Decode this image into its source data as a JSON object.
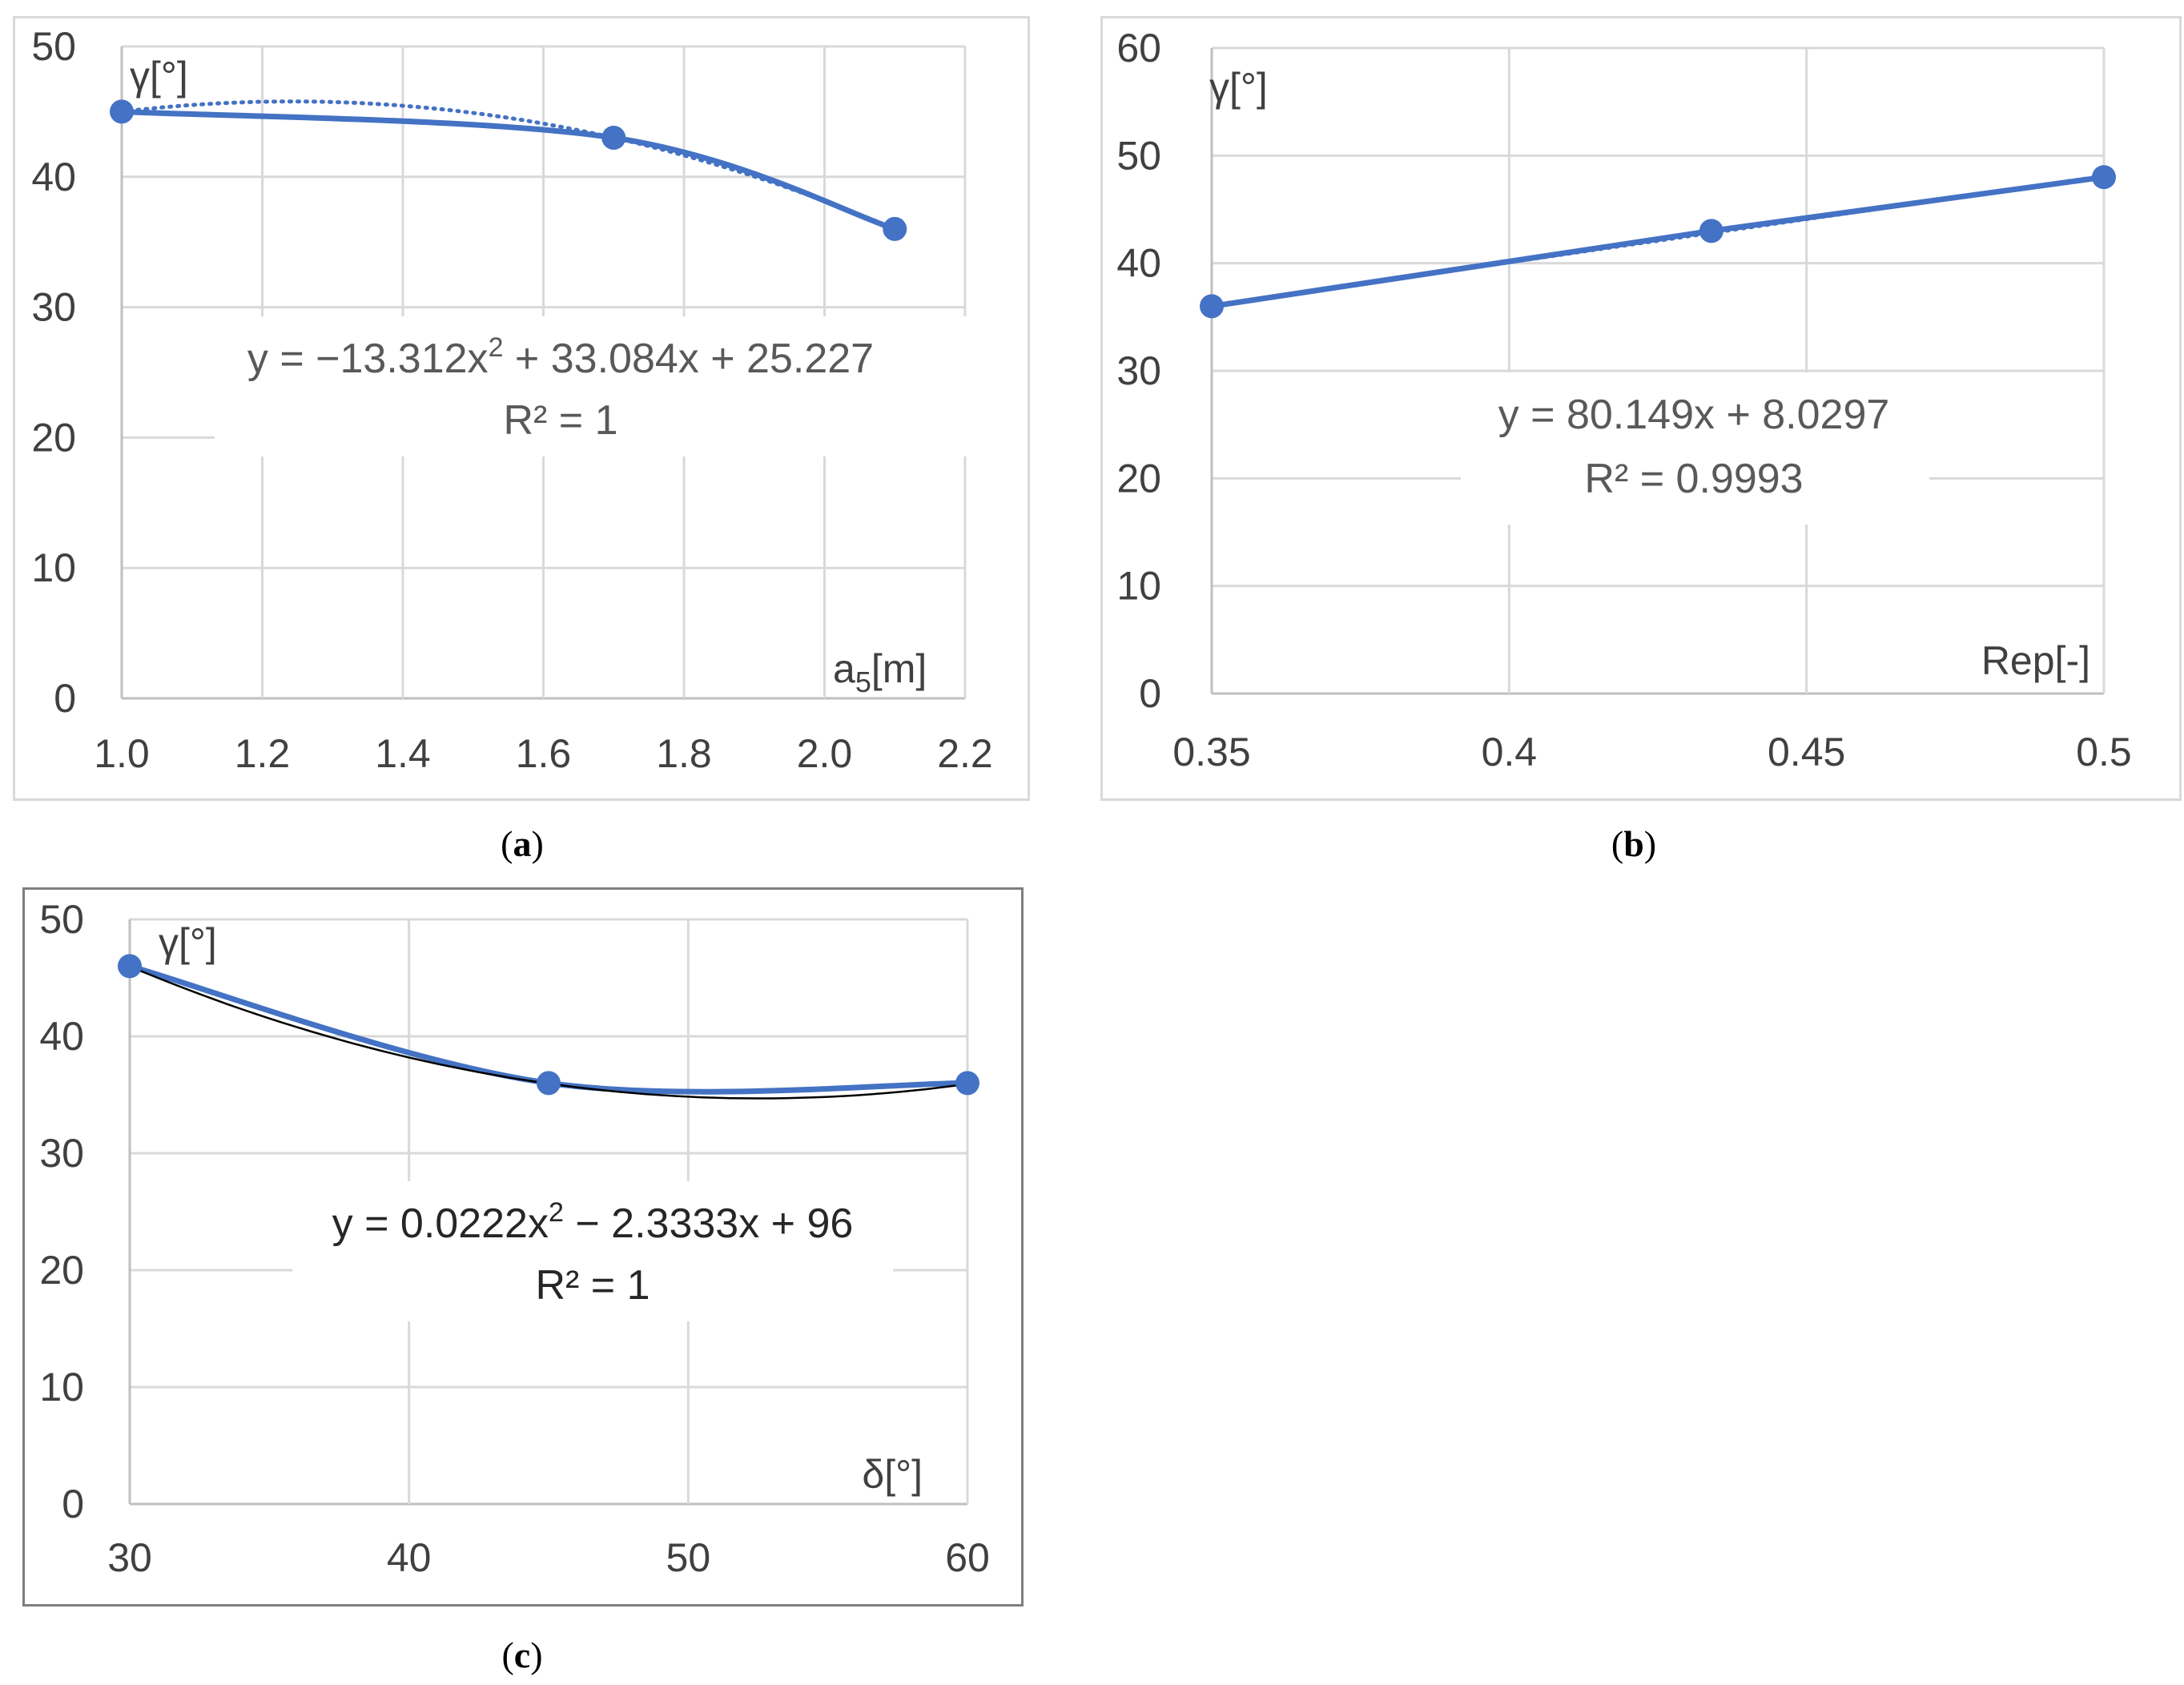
{
  "colors": {
    "series": "#4472c4",
    "grid": "#d9d9d9",
    "axis": "#bfbfbf",
    "text": "#404040",
    "trend_c": "#000000"
  },
  "captions": {
    "a": "a",
    "b": "b",
    "c": "c"
  },
  "chart_data": [
    {
      "id": "a",
      "type": "line",
      "x": [
        1.0,
        1.7,
        2.1
      ],
      "y": [
        45,
        43,
        36
      ],
      "xlim": [
        1.0,
        2.2
      ],
      "ylim": [
        0,
        50
      ],
      "xticks": [
        "1.0",
        "1.2",
        "1.4",
        "1.6",
        "1.8",
        "2.0",
        "2.2"
      ],
      "yticks": [
        "0",
        "10",
        "20",
        "30",
        "40",
        "50"
      ],
      "ylabel": "γ[°]",
      "xlabel_main": "a",
      "xlabel_sub": "5",
      "xlabel_unit": "[m]",
      "trendline": {
        "kind": "poly2",
        "coef": [
          -13.312,
          33.084,
          25.227
        ],
        "style": "dotted"
      },
      "equation": {
        "line1_pre": "y = −13.312x",
        "line1_sup": "2",
        "line1_post": " + 33.084x + 25.227",
        "line2": "R² = 1"
      }
    },
    {
      "id": "b",
      "type": "line",
      "x": [
        0.35,
        0.434,
        0.5
      ],
      "y": [
        36,
        43,
        48
      ],
      "xlim": [
        0.35,
        0.5
      ],
      "ylim": [
        0,
        60
      ],
      "xticks": [
        "0.35",
        "0.4",
        "0.45",
        "0.5"
      ],
      "yticks": [
        "0",
        "10",
        "20",
        "30",
        "40",
        "50",
        "60"
      ],
      "ylabel": "γ[°]",
      "xlabel": "Rep[-]",
      "trendline": {
        "kind": "linear",
        "coef": [
          80.149,
          8.0297
        ],
        "style": "dotted"
      },
      "equation": {
        "line1": "y = 80.149x + 8.0297",
        "line2": "R² = 0.9993"
      }
    },
    {
      "id": "c",
      "type": "line",
      "x": [
        30,
        45,
        60
      ],
      "y": [
        46,
        36,
        36
      ],
      "xlim": [
        30,
        60
      ],
      "ylim": [
        0,
        50
      ],
      "xticks": [
        "30",
        "40",
        "50",
        "60"
      ],
      "yticks": [
        "0",
        "10",
        "20",
        "30",
        "40",
        "50"
      ],
      "ylabel": "γ[°]",
      "xlabel": "δ[°]",
      "trendline": {
        "kind": "poly2",
        "coef": [
          0.0222,
          -2.3333,
          96
        ],
        "style": "solid"
      },
      "equation": {
        "line1_pre": "y = 0.0222x",
        "line1_sup": "2",
        "line1_post": " − 2.3333x + 96",
        "line2": "R² = 1"
      }
    }
  ]
}
